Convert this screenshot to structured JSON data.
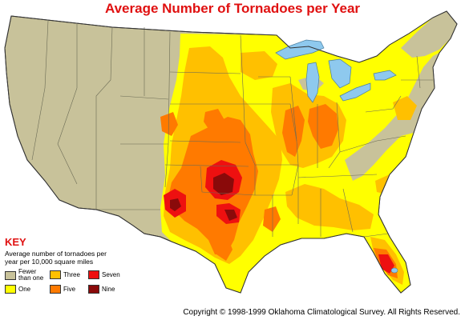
{
  "title": "Average Number of Tornadoes per Year",
  "key": {
    "heading": "KEY",
    "description": "Average number of tornadoes per year per 10,000 square miles",
    "items": [
      {
        "label": "Fewer than one",
        "color": "#c8c29a"
      },
      {
        "label": "One",
        "color": "#ffff00"
      },
      {
        "label": "Three",
        "color": "#ffc000"
      },
      {
        "label": "Five",
        "color": "#ff7a00"
      },
      {
        "label": "Seven",
        "color": "#ee1010"
      },
      {
        "label": "Nine",
        "color": "#8a0a0a"
      }
    ]
  },
  "colors": {
    "land": "#c8c29a",
    "water": "#8ec9ee",
    "ocean": "#ffffff",
    "title": "#e01010",
    "state_line": "#6b6b55"
  },
  "copyright": "Copyright © 1998-1999 Oklahoma Climatological Survey. All Rights Reserved."
}
